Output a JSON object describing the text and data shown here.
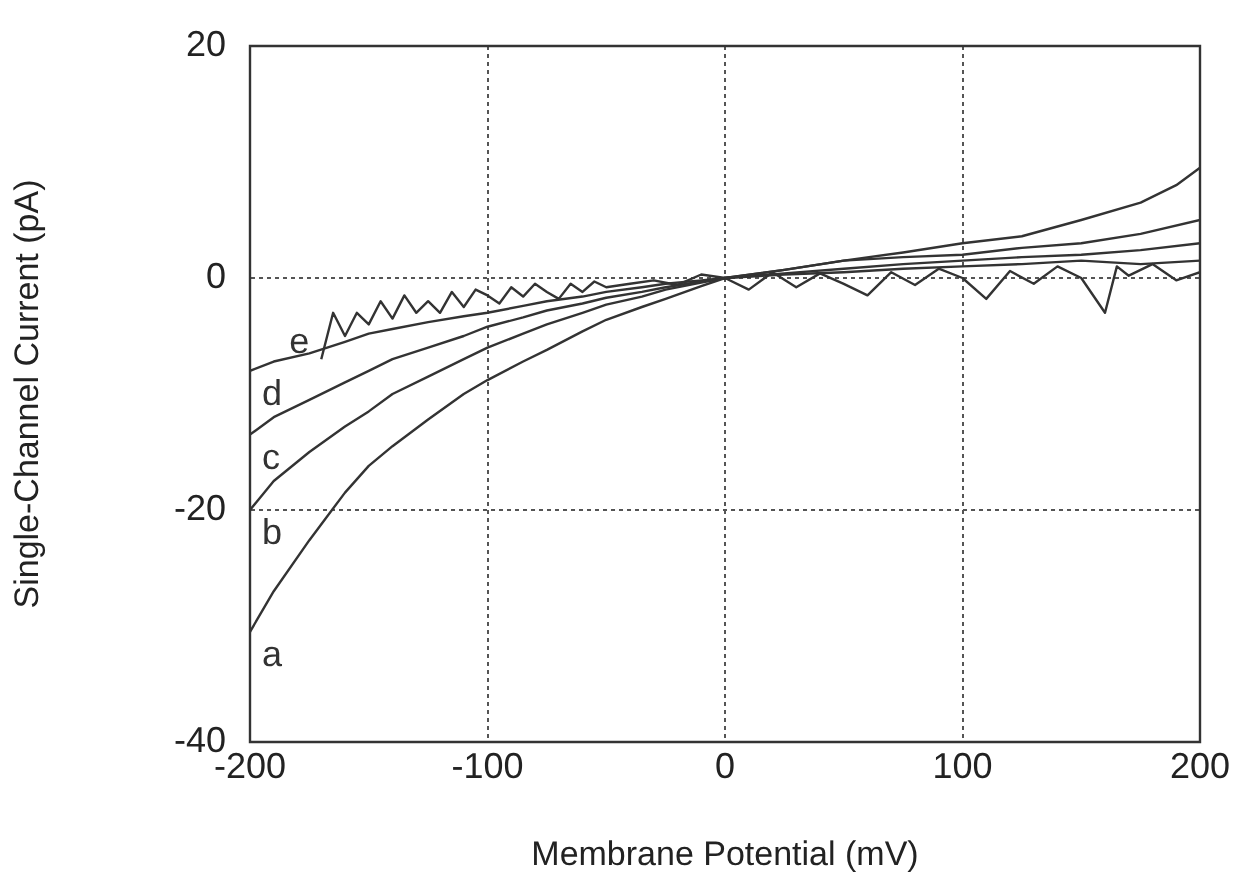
{
  "chart_data": {
    "type": "line",
    "xlabel": "Membrane Potential (mV)",
    "ylabel": "Single-Channel Current (pA)",
    "xlim": [
      -200,
      200
    ],
    "xticks": [
      -200,
      -100,
      0,
      100,
      200
    ],
    "ylim": [
      -40,
      20
    ],
    "yticks": [
      -40,
      -20,
      0,
      20
    ],
    "grid": true,
    "legend": false,
    "marker": "none",
    "line_style": "solid",
    "series": [
      {
        "name": "a",
        "color": "#333333",
        "x": [
          -200,
          -190,
          -175,
          -160,
          -150,
          -140,
          -125,
          -110,
          -100,
          -85,
          -75,
          -60,
          -50,
          -35,
          -25,
          -10,
          0,
          25,
          50,
          75,
          100,
          125,
          150,
          175,
          190,
          200
        ],
        "values": [
          -30.5,
          -27,
          -22.6,
          -18.5,
          -16.2,
          -14.5,
          -12.2,
          -10,
          -8.8,
          -7.2,
          -6.2,
          -4.6,
          -3.6,
          -2.5,
          -1.8,
          -0.7,
          0,
          0.7,
          1.5,
          2.2,
          3,
          3.6,
          5,
          6.5,
          8,
          9.5
        ]
      },
      {
        "name": "b",
        "color": "#333333",
        "x": [
          -200,
          -190,
          -175,
          -160,
          -150,
          -140,
          -125,
          -110,
          -100,
          -85,
          -75,
          -60,
          -50,
          -35,
          -25,
          -10,
          0,
          25,
          50,
          75,
          100,
          125,
          150,
          175,
          200
        ],
        "values": [
          -20,
          -17.5,
          -15,
          -12.8,
          -11.5,
          -10,
          -8.5,
          -7,
          -6,
          -4.8,
          -4,
          -3,
          -2.3,
          -1.6,
          -1,
          -0.4,
          0,
          0.7,
          1.5,
          1.8,
          2,
          2.6,
          3,
          3.8,
          5
        ]
      },
      {
        "name": "c",
        "color": "#333333",
        "x": [
          -200,
          -190,
          -175,
          -160,
          -150,
          -140,
          -125,
          -110,
          -100,
          -85,
          -75,
          -60,
          -50,
          -35,
          -25,
          -10,
          0,
          25,
          50,
          75,
          100,
          125,
          150,
          175,
          200
        ],
        "values": [
          -13.5,
          -12,
          -10.5,
          -9,
          -8,
          -7,
          -6,
          -5,
          -4.2,
          -3.4,
          -2.8,
          -2.2,
          -1.7,
          -1.2,
          -0.8,
          -0.3,
          0,
          0.4,
          0.8,
          1.2,
          1.5,
          1.8,
          2,
          2.4,
          3
        ]
      },
      {
        "name": "d",
        "color": "#333333",
        "x": [
          -200,
          -190,
          -175,
          -160,
          -150,
          -140,
          -125,
          -110,
          -100,
          -85,
          -75,
          -60,
          -50,
          -35,
          -25,
          -10,
          0,
          25,
          50,
          75,
          100,
          125,
          150,
          175,
          200
        ],
        "values": [
          -8,
          -7.2,
          -6.5,
          -5.5,
          -4.8,
          -4.4,
          -3.8,
          -3.3,
          -3,
          -2.4,
          -2,
          -1.6,
          -1.2,
          -0.8,
          -0.5,
          -0.2,
          0,
          0.3,
          0.5,
          0.8,
          1,
          1.2,
          1.5,
          1.2,
          1.5
        ]
      },
      {
        "name": "e",
        "color": "#333333",
        "x": [
          -170,
          -165,
          -160,
          -155,
          -150,
          -145,
          -140,
          -135,
          -130,
          -125,
          -120,
          -115,
          -110,
          -105,
          -100,
          -95,
          -90,
          -85,
          -80,
          -75,
          -70,
          -65,
          -60,
          -55,
          -50,
          -40,
          -30,
          -20,
          -10,
          0,
          10,
          20,
          30,
          40,
          50,
          60,
          70,
          80,
          90,
          100,
          110,
          120,
          130,
          140,
          150,
          160,
          165,
          170,
          180,
          190,
          200
        ],
        "values": [
          -7,
          -3,
          -5,
          -3,
          -4,
          -2,
          -3.5,
          -1.5,
          -3,
          -2,
          -3,
          -1.2,
          -2.5,
          -1,
          -1.5,
          -2.2,
          -0.8,
          -1.6,
          -0.5,
          -1.2,
          -1.8,
          -0.5,
          -1.2,
          -0.3,
          -0.8,
          -0.5,
          -0.2,
          -0.6,
          0.3,
          0,
          -1,
          0.5,
          -0.8,
          0.4,
          -0.5,
          -1.5,
          0.5,
          -0.6,
          0.8,
          0,
          -1.8,
          0.6,
          -0.5,
          1,
          0,
          -3,
          1,
          0.2,
          1.2,
          -0.2,
          0.5
        ]
      }
    ]
  }
}
